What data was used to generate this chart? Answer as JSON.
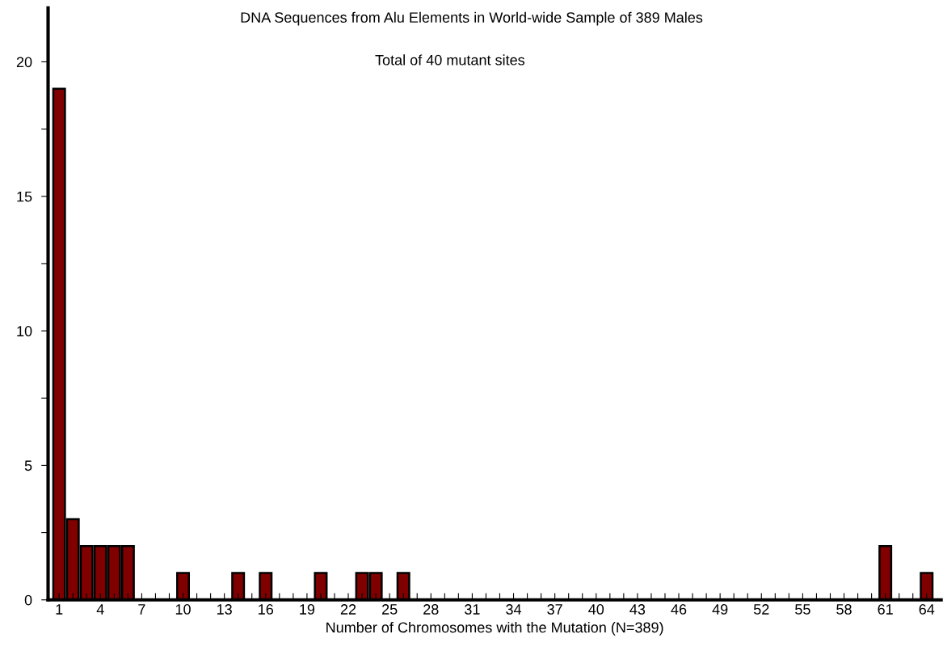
{
  "chart_data": {
    "type": "bar",
    "title": "DNA Sequences from Alu Elements in World-wide Sample of 389 Males",
    "xlabel": "Number of Chromosomes with the Mutation (N=389)",
    "annotations": [
      "Total of 40 mutant sites"
    ],
    "categories": [
      "1",
      null,
      null,
      "4",
      null,
      null,
      "7",
      null,
      null,
      "10",
      null,
      null,
      "13",
      null,
      null,
      "16",
      null,
      null,
      "19",
      null,
      null,
      "22",
      null,
      null,
      "25",
      null,
      null,
      "28",
      null,
      null,
      "31",
      null,
      null,
      "34",
      null,
      null,
      "37",
      null,
      null,
      "40",
      null,
      null,
      "43",
      null,
      null,
      "46",
      null,
      null,
      "49",
      null,
      null,
      "52",
      null,
      null,
      "55",
      null,
      null,
      "58",
      null,
      null,
      "61",
      null,
      null,
      "64"
    ],
    "values": [
      19,
      3,
      2,
      2,
      2,
      2,
      0,
      0,
      0,
      1,
      0,
      0,
      0,
      1,
      0,
      1,
      0,
      0,
      0,
      1,
      0,
      0,
      1,
      1,
      0,
      1,
      0,
      0,
      0,
      0,
      0,
      0,
      0,
      0,
      0,
      0,
      0,
      0,
      0,
      0,
      0,
      0,
      0,
      0,
      0,
      0,
      0,
      0,
      0,
      0,
      0,
      0,
      0,
      0,
      0,
      0,
      0,
      0,
      0,
      0,
      2,
      0,
      0,
      1
    ],
    "color": "#800000",
    "ylim": [
      0,
      22
    ],
    "yticks": [
      0,
      {
        "value": 2.5,
        "label": null
      },
      5,
      {
        "value": 7.5,
        "label": null
      },
      10,
      {
        "value": 12.5,
        "label": null
      },
      15,
      {
        "value": 17.5,
        "label": null
      },
      20
    ],
    "grid": false
  }
}
